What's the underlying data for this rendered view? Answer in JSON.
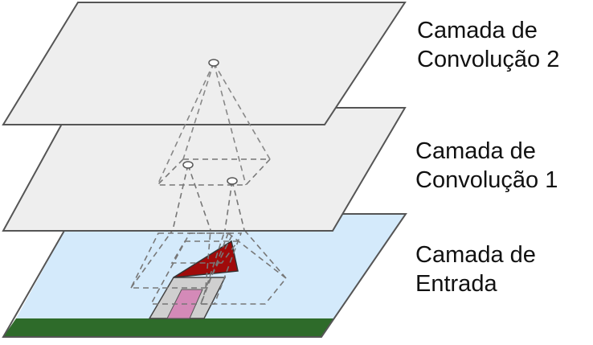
{
  "labels": {
    "conv2": {
      "line1": "Camada de",
      "line2": "Convolução 2"
    },
    "conv1": {
      "line1": "Camada de",
      "line2": "Convolução 1"
    },
    "input": {
      "line1": "Camada de",
      "line2": "Entrada"
    }
  },
  "colors": {
    "conv_layer_fill": "#eeeeee",
    "layer_stroke": "#555555",
    "sky": "#d4eafb",
    "grass": "#2e6b2a",
    "roof": "#a00a0a",
    "house_wall": "#cfcfcf",
    "door": "#d48ab8",
    "dashed_line": "#777777"
  }
}
